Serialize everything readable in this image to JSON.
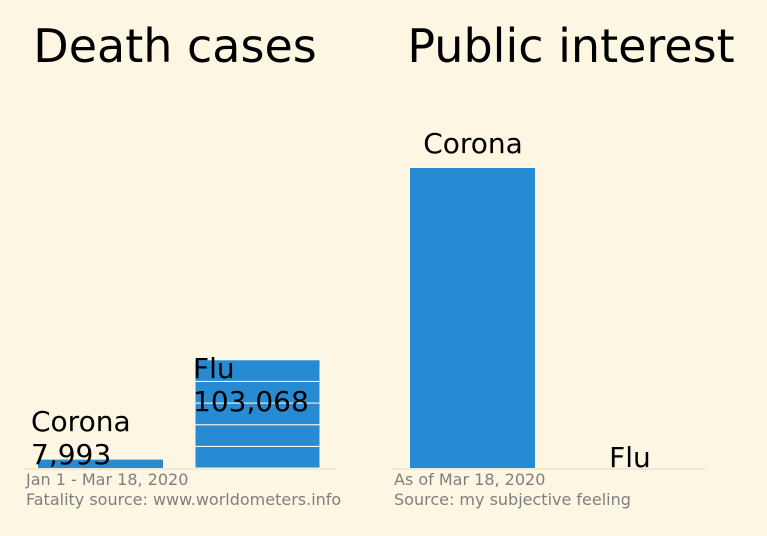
{
  "colors": {
    "background": "#fdf6e3",
    "bar": "#268bd2",
    "baseline": "#eee8d5",
    "text": "#000000",
    "footnote": "#7f7f7f"
  },
  "chart_data": [
    {
      "type": "bar",
      "title": "Death cases",
      "categories": [
        "Corona",
        "Flu"
      ],
      "values": [
        7993,
        103068
      ],
      "value_labels": [
        "7,993",
        "103,068"
      ],
      "ylim": [
        0,
        300000
      ],
      "stacked_segments": [
        1,
        5
      ],
      "grid": false,
      "footnote": [
        "Jan 1 - Mar 18, 2020",
        "Fatality source: www.worldometers.info"
      ]
    },
    {
      "type": "bar",
      "title": "Public interest",
      "categories": [
        "Corona",
        "Flu"
      ],
      "values": [
        100,
        0
      ],
      "ylim": [
        0,
        105
      ],
      "grid": false,
      "footnote": [
        "As of Mar 18, 2020",
        "Source: my subjective feeling"
      ]
    }
  ]
}
